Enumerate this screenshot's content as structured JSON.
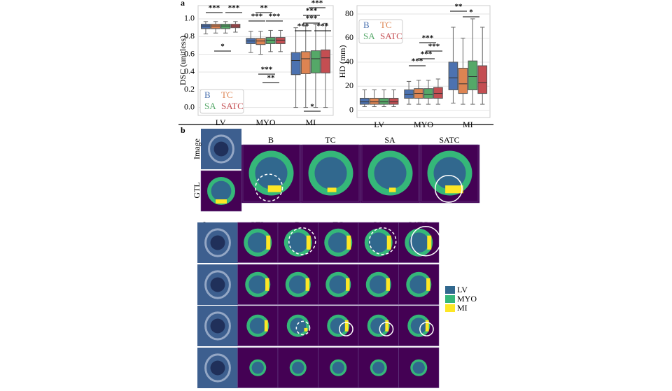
{
  "panel_a_label": "a",
  "chart_data": [
    {
      "type": "box",
      "ylabel": "DSC (unitless)",
      "categories": [
        "LV",
        "MYO",
        "MI"
      ],
      "ylim": [
        -0.09,
        1.15
      ],
      "yticks": [
        {
          "value": 0,
          "label": "0.0"
        },
        0.2,
        0.4,
        0.6,
        0.8,
        {
          "value": 1,
          "label": "1.0"
        }
      ],
      "grid": true,
      "legend": "lower left",
      "annotations": [
        "***",
        "***",
        "*",
        "**",
        "***",
        "***",
        "***",
        "**",
        "***",
        "***",
        "***",
        "***",
        "***",
        "*"
      ],
      "series": [
        {
          "name": "B",
          "color": "#4c72b0",
          "values": [
            {
              "min": 0.83,
              "q1": 0.89,
              "median": 0.92,
              "q3": 0.94,
              "max": 0.97
            },
            {
              "min": 0.62,
              "q1": 0.72,
              "median": 0.75,
              "q3": 0.78,
              "max": 0.86
            },
            {
              "min": 0,
              "q1": 0.37,
              "median": 0.53,
              "q3": 0.62,
              "max": 0.9
            }
          ]
        },
        {
          "name": "TC",
          "color": "#dd8452",
          "values": [
            {
              "min": 0.84,
              "q1": 0.89,
              "median": 0.92,
              "q3": 0.94,
              "max": 0.97
            },
            {
              "min": 0.6,
              "q1": 0.71,
              "median": 0.75,
              "q3": 0.78,
              "max": 0.86
            },
            {
              "min": 0,
              "q1": 0.38,
              "median": 0.55,
              "q3": 0.63,
              "max": 0.92
            }
          ]
        },
        {
          "name": "SA",
          "color": "#55a868",
          "values": [
            {
              "min": 0.84,
              "q1": 0.89,
              "median": 0.92,
              "q3": 0.94,
              "max": 0.97
            },
            {
              "min": 0.63,
              "q1": 0.72,
              "median": 0.76,
              "q3": 0.79,
              "max": 0.87
            },
            {
              "min": 0,
              "q1": 0.39,
              "median": 0.55,
              "q3": 0.64,
              "max": 0.94
            }
          ]
        },
        {
          "name": "SATC",
          "color": "#c44e52",
          "values": [
            {
              "min": 0.85,
              "q1": 0.9,
              "median": 0.92,
              "q3": 0.94,
              "max": 0.97
            },
            {
              "min": 0.63,
              "q1": 0.72,
              "median": 0.76,
              "q3": 0.79,
              "max": 0.87
            },
            {
              "min": 0,
              "q1": 0.39,
              "median": 0.56,
              "q3": 0.65,
              "max": 0.95
            }
          ]
        }
      ]
    },
    {
      "type": "box",
      "ylabel": "HD (mm)",
      "categories": [
        "LV",
        "MYO",
        "MI"
      ],
      "ylim": [
        -6,
        87
      ],
      "yticks": [
        0,
        20,
        40,
        60,
        80
      ],
      "grid": true,
      "legend": "upper left",
      "annotations": [
        "***",
        "***",
        "***",
        "***",
        "**",
        "*"
      ],
      "series": [
        {
          "name": "B",
          "color": "#4c72b0",
          "values": [
            {
              "min": 3,
              "q1": 5,
              "median": 7,
              "q3": 10,
              "max": 17
            },
            {
              "min": 5,
              "q1": 10,
              "median": 13,
              "q3": 17,
              "max": 24
            },
            {
              "min": 6,
              "q1": 17,
              "median": 27,
              "q3": 40,
              "max": 69
            }
          ]
        },
        {
          "name": "TC",
          "color": "#dd8452",
          "values": [
            {
              "min": 3,
              "q1": 5,
              "median": 7,
              "q3": 10,
              "max": 17
            },
            {
              "min": 5,
              "q1": 10,
              "median": 14,
              "q3": 18,
              "max": 25
            },
            {
              "min": 5,
              "q1": 14,
              "median": 22,
              "q3": 35,
              "max": 60
            }
          ]
        },
        {
          "name": "SA",
          "color": "#55a868",
          "values": [
            {
              "min": 3,
              "q1": 5,
              "median": 7,
              "q3": 10,
              "max": 17
            },
            {
              "min": 5,
              "q1": 10,
              "median": 13,
              "q3": 18,
              "max": 25
            },
            {
              "min": 5,
              "q1": 17,
              "median": 28,
              "q3": 41,
              "max": 76
            }
          ]
        },
        {
          "name": "SATC",
          "color": "#c44e52",
          "values": [
            {
              "min": 3,
              "q1": 5,
              "median": 7,
              "q3": 10,
              "max": 17
            },
            {
              "min": 5,
              "q1": 10,
              "median": 14,
              "q3": 19,
              "max": 26
            },
            {
              "min": 5,
              "q1": 14,
              "median": 23,
              "q3": 37,
              "max": 69
            }
          ]
        }
      ]
    }
  ],
  "panel_b": {
    "label": "b",
    "top": {
      "side_labels": [
        "Image",
        "GTL"
      ],
      "columns": [
        "B",
        "TC",
        "SA",
        "SATC"
      ]
    },
    "bottom": {
      "columns": [
        "Image",
        "GTL",
        "B",
        "TC",
        "SA",
        "SATC"
      ]
    },
    "legend": [
      {
        "name": "LV",
        "color": "#31688e"
      },
      {
        "name": "MYO",
        "color": "#35b779"
      },
      {
        "name": "MI",
        "color": "#fde725"
      }
    ]
  }
}
